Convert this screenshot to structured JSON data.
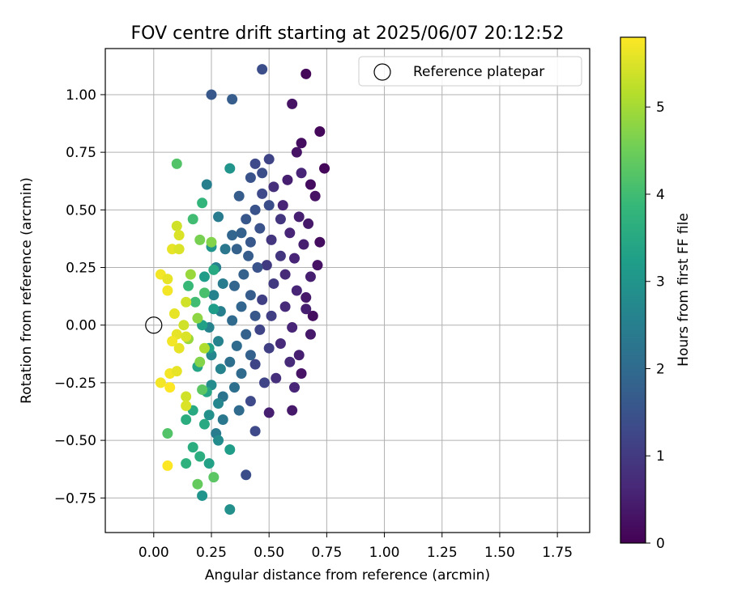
{
  "chart_data": {
    "type": "scatter",
    "title": "FOV centre drift starting at 2025/06/07 20:12:52",
    "xlabel": "Angular distance from reference (arcmin)",
    "ylabel": "Rotation from reference (arcmin)",
    "xlim": [
      -0.21,
      1.89
    ],
    "ylim": [
      -0.9,
      1.2
    ],
    "xticks": [
      "0.00",
      "0.25",
      "0.50",
      "0.75",
      "1.00",
      "1.25",
      "1.50",
      "1.75"
    ],
    "yticks": [
      "−0.75",
      "−0.50",
      "−0.25",
      "0.00",
      "0.25",
      "0.50",
      "0.75",
      "1.00"
    ],
    "grid": true,
    "legend": {
      "placement": "top-right",
      "entries": [
        "Reference platepar"
      ]
    },
    "reference_point": {
      "x": 0.0,
      "y": 0.0,
      "marker": "open-circle"
    },
    "colorbar": {
      "label": "Hours from first FF file",
      "colormap": "viridis",
      "range": [
        0,
        5.8
      ],
      "ticks": [
        "0",
        "1",
        "2",
        "3",
        "4",
        "5"
      ],
      "colors": [
        "#440154",
        "#482878",
        "#3e4989",
        "#31688e",
        "#26828e",
        "#1f9e89",
        "#35b779",
        "#6ece58",
        "#b5de2b",
        "#fde725"
      ]
    },
    "series_columns": [
      "x",
      "y",
      "hours"
    ],
    "points": [
      [
        0.66,
        1.09,
        0.1
      ],
      [
        0.6,
        0.96,
        0.3
      ],
      [
        0.72,
        0.84,
        0.1
      ],
      [
        0.64,
        0.79,
        0.2
      ],
      [
        0.74,
        0.68,
        0.1
      ],
      [
        0.62,
        0.75,
        0.3
      ],
      [
        0.68,
        0.61,
        0.2
      ],
      [
        0.7,
        0.56,
        0.3
      ],
      [
        0.72,
        0.36,
        0.2
      ],
      [
        0.71,
        0.26,
        0.3
      ],
      [
        0.66,
        0.12,
        0.4
      ],
      [
        0.69,
        0.04,
        0.2
      ],
      [
        0.68,
        -0.04,
        0.4
      ],
      [
        0.63,
        -0.13,
        0.5
      ],
      [
        0.64,
        -0.21,
        0.3
      ],
      [
        0.6,
        -0.37,
        0.4
      ],
      [
        0.5,
        -0.38,
        0.5
      ],
      [
        0.64,
        0.66,
        0.6
      ],
      [
        0.58,
        0.63,
        0.5
      ],
      [
        0.56,
        0.52,
        0.6
      ],
      [
        0.63,
        0.47,
        0.5
      ],
      [
        0.67,
        0.44,
        0.4
      ],
      [
        0.59,
        0.4,
        0.6
      ],
      [
        0.65,
        0.35,
        0.5
      ],
      [
        0.61,
        0.29,
        0.6
      ],
      [
        0.68,
        0.21,
        0.5
      ],
      [
        0.57,
        0.22,
        0.7
      ],
      [
        0.62,
        0.15,
        0.6
      ],
      [
        0.66,
        0.07,
        0.5
      ],
      [
        0.57,
        0.08,
        0.7
      ],
      [
        0.6,
        -0.01,
        0.6
      ],
      [
        0.55,
        -0.08,
        0.7
      ],
      [
        0.59,
        -0.16,
        0.7
      ],
      [
        0.53,
        -0.23,
        0.8
      ],
      [
        0.61,
        -0.27,
        0.6
      ],
      [
        0.52,
        0.6,
        0.8
      ],
      [
        0.55,
        0.46,
        0.9
      ],
      [
        0.51,
        0.37,
        0.9
      ],
      [
        0.55,
        0.3,
        0.9
      ],
      [
        0.49,
        0.26,
        1.0
      ],
      [
        0.52,
        0.18,
        1.0
      ],
      [
        0.47,
        0.11,
        1.1
      ],
      [
        0.51,
        0.04,
        1.1
      ],
      [
        0.46,
        -0.02,
        1.2
      ],
      [
        0.5,
        -0.1,
        1.1
      ],
      [
        0.44,
        -0.17,
        1.2
      ],
      [
        0.48,
        -0.25,
        1.2
      ],
      [
        0.42,
        -0.33,
        1.3
      ],
      [
        0.44,
        -0.46,
        1.3
      ],
      [
        0.4,
        -0.65,
        1.4
      ],
      [
        0.47,
        1.11,
        1.4
      ],
      [
        0.25,
        1.0,
        1.6
      ],
      [
        0.34,
        0.98,
        1.7
      ],
      [
        0.5,
        0.72,
        1.2
      ],
      [
        0.44,
        0.7,
        1.3
      ],
      [
        0.47,
        0.66,
        1.4
      ],
      [
        0.42,
        0.64,
        1.5
      ],
      [
        0.47,
        0.57,
        1.3
      ],
      [
        0.37,
        0.56,
        1.7
      ],
      [
        0.5,
        0.52,
        1.4
      ],
      [
        0.44,
        0.5,
        1.5
      ],
      [
        0.4,
        0.46,
        1.6
      ],
      [
        0.46,
        0.42,
        1.5
      ],
      [
        0.38,
        0.4,
        1.8
      ],
      [
        0.42,
        0.36,
        1.6
      ],
      [
        0.34,
        0.39,
        1.9
      ],
      [
        0.36,
        0.33,
        1.8
      ],
      [
        0.41,
        0.3,
        1.7
      ],
      [
        0.45,
        0.25,
        1.5
      ],
      [
        0.39,
        0.22,
        1.8
      ],
      [
        0.35,
        0.17,
        1.9
      ],
      [
        0.42,
        0.13,
        1.7
      ],
      [
        0.38,
        0.08,
        1.9
      ],
      [
        0.44,
        0.04,
        1.6
      ],
      [
        0.34,
        0.02,
        2.0
      ],
      [
        0.4,
        -0.04,
        1.8
      ],
      [
        0.36,
        -0.09,
        2.0
      ],
      [
        0.42,
        -0.13,
        1.8
      ],
      [
        0.33,
        -0.16,
        2.1
      ],
      [
        0.38,
        -0.21,
        2.0
      ],
      [
        0.35,
        -0.27,
        2.1
      ],
      [
        0.3,
        -0.31,
        2.2
      ],
      [
        0.37,
        -0.37,
        2.0
      ],
      [
        0.3,
        -0.41,
        2.3
      ],
      [
        0.27,
        -0.47,
        2.4
      ],
      [
        0.23,
        0.61,
        2.5
      ],
      [
        0.28,
        0.47,
        2.4
      ],
      [
        0.31,
        0.33,
        2.3
      ],
      [
        0.27,
        0.25,
        2.5
      ],
      [
        0.3,
        0.18,
        2.4
      ],
      [
        0.26,
        0.13,
        2.6
      ],
      [
        0.29,
        0.06,
        2.5
      ],
      [
        0.24,
        -0.01,
        2.6
      ],
      [
        0.28,
        -0.07,
        2.6
      ],
      [
        0.25,
        -0.13,
        2.7
      ],
      [
        0.29,
        -0.19,
        2.6
      ],
      [
        0.25,
        -0.26,
        2.8
      ],
      [
        0.28,
        -0.34,
        2.7
      ],
      [
        0.24,
        -0.39,
        2.9
      ],
      [
        0.28,
        -0.5,
        2.8
      ],
      [
        0.21,
        -0.74,
        3.0
      ],
      [
        0.33,
        -0.8,
        2.9
      ],
      [
        0.33,
        0.68,
        3.0
      ],
      [
        0.25,
        0.34,
        3.0
      ],
      [
        0.22,
        0.21,
        3.2
      ],
      [
        0.26,
        0.07,
        3.2
      ],
      [
        0.21,
        0.0,
        3.3
      ],
      [
        0.24,
        -0.1,
        3.3
      ],
      [
        0.19,
        -0.18,
        3.4
      ],
      [
        0.23,
        -0.29,
        3.4
      ],
      [
        0.17,
        -0.37,
        3.5
      ],
      [
        0.22,
        -0.43,
        3.5
      ],
      [
        0.17,
        -0.53,
        3.6
      ],
      [
        0.2,
        -0.57,
        3.6
      ],
      [
        0.24,
        -0.6,
        3.3
      ],
      [
        0.14,
        -0.6,
        3.7
      ],
      [
        0.33,
        -0.54,
        3.2
      ],
      [
        0.14,
        -0.41,
        3.6
      ],
      [
        0.26,
        0.24,
        3.5
      ],
      [
        0.21,
        0.53,
        3.8
      ],
      [
        0.17,
        0.46,
        4.0
      ],
      [
        0.1,
        0.7,
        4.2
      ],
      [
        0.15,
        0.17,
        3.9
      ],
      [
        0.18,
        0.1,
        4.0
      ],
      [
        0.22,
        0.14,
        4.1
      ],
      [
        0.21,
        -0.28,
        4.3
      ],
      [
        0.26,
        -0.66,
        4.3
      ],
      [
        0.19,
        -0.69,
        4.4
      ],
      [
        0.06,
        -0.47,
        4.2
      ],
      [
        0.2,
        0.37,
        4.6
      ],
      [
        0.16,
        0.22,
        4.9
      ],
      [
        0.19,
        0.03,
        4.8
      ],
      [
        0.15,
        -0.06,
        4.9
      ],
      [
        0.2,
        -0.16,
        4.7
      ],
      [
        0.25,
        0.36,
        4.7
      ],
      [
        0.22,
        -0.1,
        5.1
      ],
      [
        0.1,
        0.43,
        5.4
      ],
      [
        0.11,
        0.39,
        5.5
      ],
      [
        0.08,
        0.33,
        5.6
      ],
      [
        0.11,
        0.33,
        5.5
      ],
      [
        0.03,
        0.22,
        5.7
      ],
      [
        0.06,
        0.2,
        5.6
      ],
      [
        0.06,
        0.15,
        5.7
      ],
      [
        0.14,
        0.1,
        5.4
      ],
      [
        0.09,
        0.05,
        5.6
      ],
      [
        0.13,
        0.0,
        5.4
      ],
      [
        0.1,
        -0.04,
        5.6
      ],
      [
        0.14,
        -0.05,
        5.5
      ],
      [
        0.08,
        -0.07,
        5.7
      ],
      [
        0.11,
        -0.1,
        5.6
      ],
      [
        0.07,
        -0.21,
        5.7
      ],
      [
        0.1,
        -0.2,
        5.6
      ],
      [
        0.03,
        -0.25,
        5.7
      ],
      [
        0.07,
        -0.27,
        5.8
      ],
      [
        0.14,
        -0.31,
        5.4
      ],
      [
        0.14,
        -0.35,
        5.5
      ],
      [
        0.06,
        -0.61,
        5.8
      ]
    ]
  }
}
